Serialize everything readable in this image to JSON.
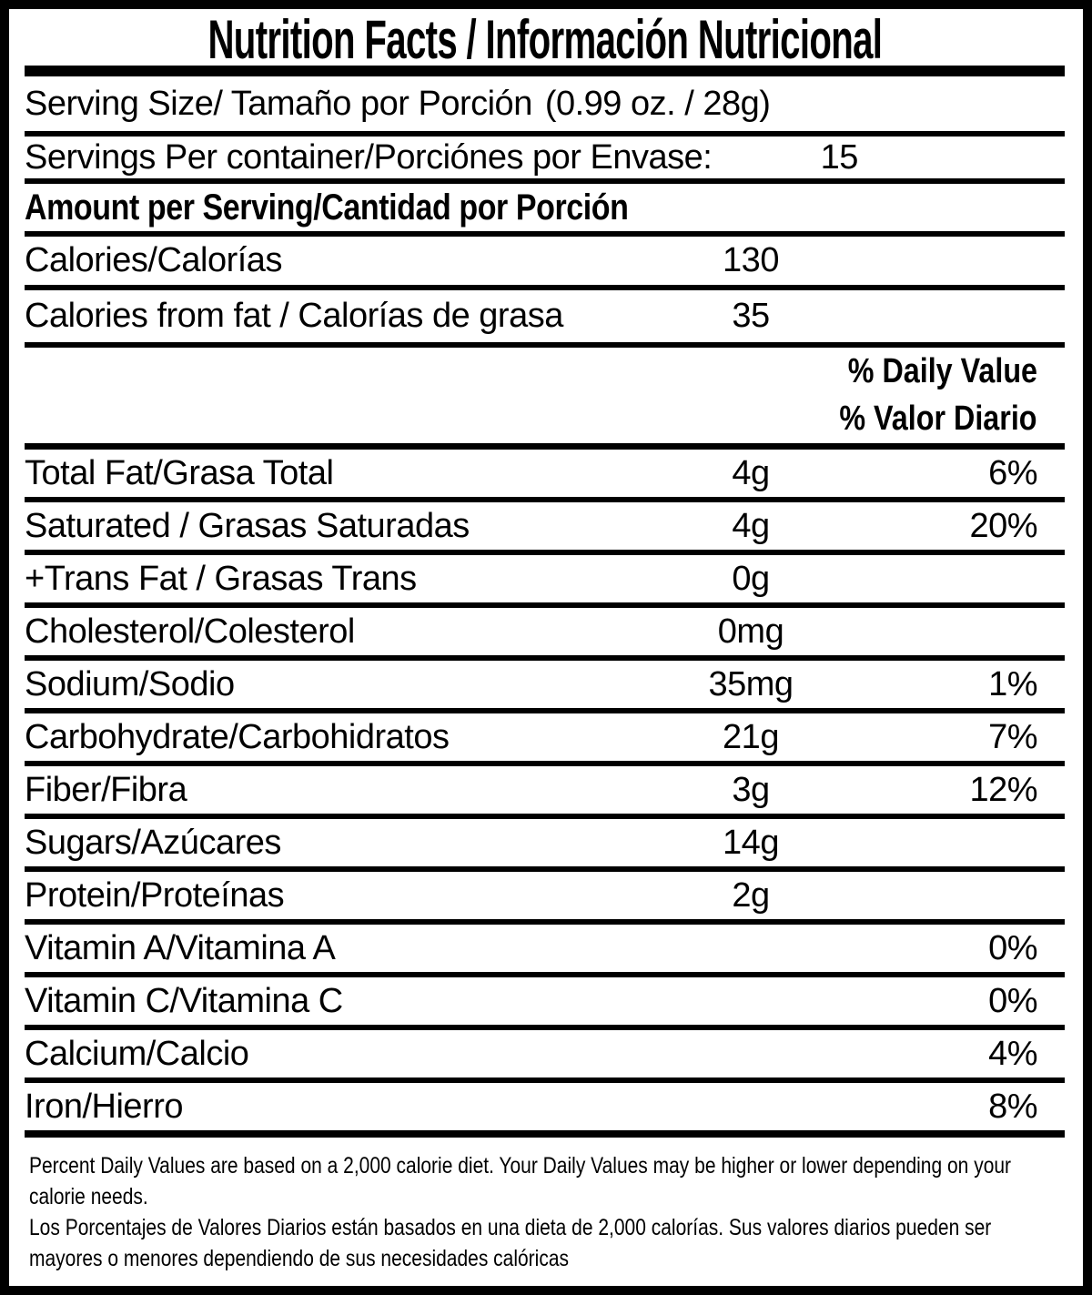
{
  "title": "Nutrition Facts / Información Nutricional",
  "serving_size": {
    "label": "Serving Size/ Tamaño por Porción",
    "value": "(0.99 oz. / 28g)"
  },
  "servings_per_container": {
    "label": "Servings Per container/Porciónes por Envase:",
    "value": "15"
  },
  "section_header": "Amount per Serving/Cantidad por Porción",
  "calories": {
    "label": "Calories/Calorías",
    "amount": "130"
  },
  "calories_from_fat": {
    "label": "Calories from fat / Calorías de grasa",
    "amount": "35"
  },
  "daily_value_header": {
    "line1": "% Daily Value",
    "line2": "% Valor Diario"
  },
  "nutrients": [
    {
      "label": "Total Fat/Grasa Total",
      "amount": "4g",
      "percent": "6%"
    },
    {
      "label": "Saturated / Grasas Saturadas",
      "amount": "4g",
      "percent": "20%"
    },
    {
      "label": "+Trans Fat / Grasas Trans",
      "amount": "0g",
      "percent": ""
    },
    {
      "label": "Cholesterol/Colesterol",
      "amount": "0mg",
      "percent": ""
    },
    {
      "label": "Sodium/Sodio",
      "amount": "35mg",
      "percent": "1%"
    },
    {
      "label": "Carbohydrate/Carbohidratos",
      "amount": "21g",
      "percent": "7%"
    },
    {
      "label": "Fiber/Fibra",
      "amount": "3g",
      "percent": "12%"
    },
    {
      "label": "Sugars/Azúcares",
      "amount": "14g",
      "percent": ""
    },
    {
      "label": "Protein/Proteínas",
      "amount": "2g",
      "percent": ""
    },
    {
      "label": "Vitamin A/Vitamina A",
      "amount": "",
      "percent": "0%"
    },
    {
      "label": "Vitamin C/Vitamina C",
      "amount": "",
      "percent": "0%"
    },
    {
      "label": "Calcium/Calcio",
      "amount": "",
      "percent": "4%"
    },
    {
      "label": "Iron/Hierro",
      "amount": "",
      "percent": "8%"
    }
  ],
  "footnote": {
    "en_line1": "Percent Daily Values are based on a 2,000 calorie diet. Your Daily Values may be higher or lower depending on your",
    "en_line2": "calorie needs.",
    "es_line1": "Los Porcentajes de Valores Diarios están basados en una dieta de 2,000 calorías. Sus valores diarios pueden ser",
    "es_line2": "mayores o menores dependiendo de sus necesidades calóricas"
  },
  "colors": {
    "ink": "#000000",
    "background": "#ffffff"
  }
}
